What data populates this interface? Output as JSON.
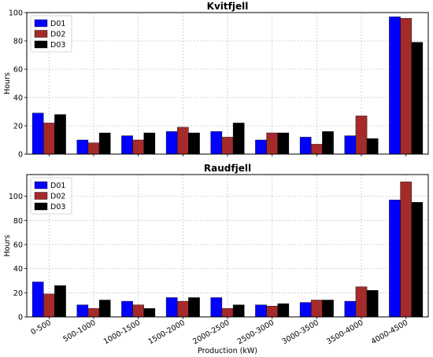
{
  "chart_data": [
    {
      "type": "bar",
      "title": "Kvitfjell",
      "xlabel": "",
      "ylabel": "Hours",
      "categories": [
        "0-500",
        "500-1000",
        "1000-1500",
        "1500-2000",
        "2000-2500",
        "2500-3000",
        "3000-3500",
        "3500-4000",
        "4000-4500"
      ],
      "series": [
        {
          "name": "D01",
          "color": "#0000ff",
          "values": [
            29,
            10,
            13,
            16,
            16,
            10,
            12,
            13,
            97
          ]
        },
        {
          "name": "D02",
          "color": "#a52a2a",
          "values": [
            22,
            8,
            10,
            19,
            12,
            15,
            7,
            27,
            96
          ]
        },
        {
          "name": "D03",
          "color": "#000000",
          "values": [
            28,
            15,
            15,
            15,
            22,
            15,
            16,
            11,
            79
          ]
        }
      ],
      "ylim": [
        0,
        100
      ],
      "yticks": [
        0,
        20,
        40,
        60,
        80,
        100
      ],
      "grid": true,
      "legend_position": "top-left"
    },
    {
      "type": "bar",
      "title": "Raudfjell",
      "xlabel": "Production (kW)",
      "ylabel": "Hours",
      "categories": [
        "0-500",
        "500-1000",
        "1000-1500",
        "1500-2000",
        "2000-2500",
        "2500-3000",
        "3000-3500",
        "3500-4000",
        "4000-4500"
      ],
      "series": [
        {
          "name": "D01",
          "color": "#0000ff",
          "values": [
            29,
            10,
            13,
            16,
            16,
            10,
            12,
            13,
            97
          ]
        },
        {
          "name": "D02",
          "color": "#a52a2a",
          "values": [
            19,
            7,
            10,
            13,
            7,
            9,
            14,
            25,
            112
          ]
        },
        {
          "name": "D03",
          "color": "#000000",
          "values": [
            26,
            14,
            7,
            16,
            10,
            11,
            14,
            22,
            95
          ]
        }
      ],
      "ylim": [
        0,
        118
      ],
      "yticks": [
        0,
        20,
        40,
        60,
        80,
        100
      ],
      "grid": true,
      "legend_position": "top-left"
    }
  ]
}
